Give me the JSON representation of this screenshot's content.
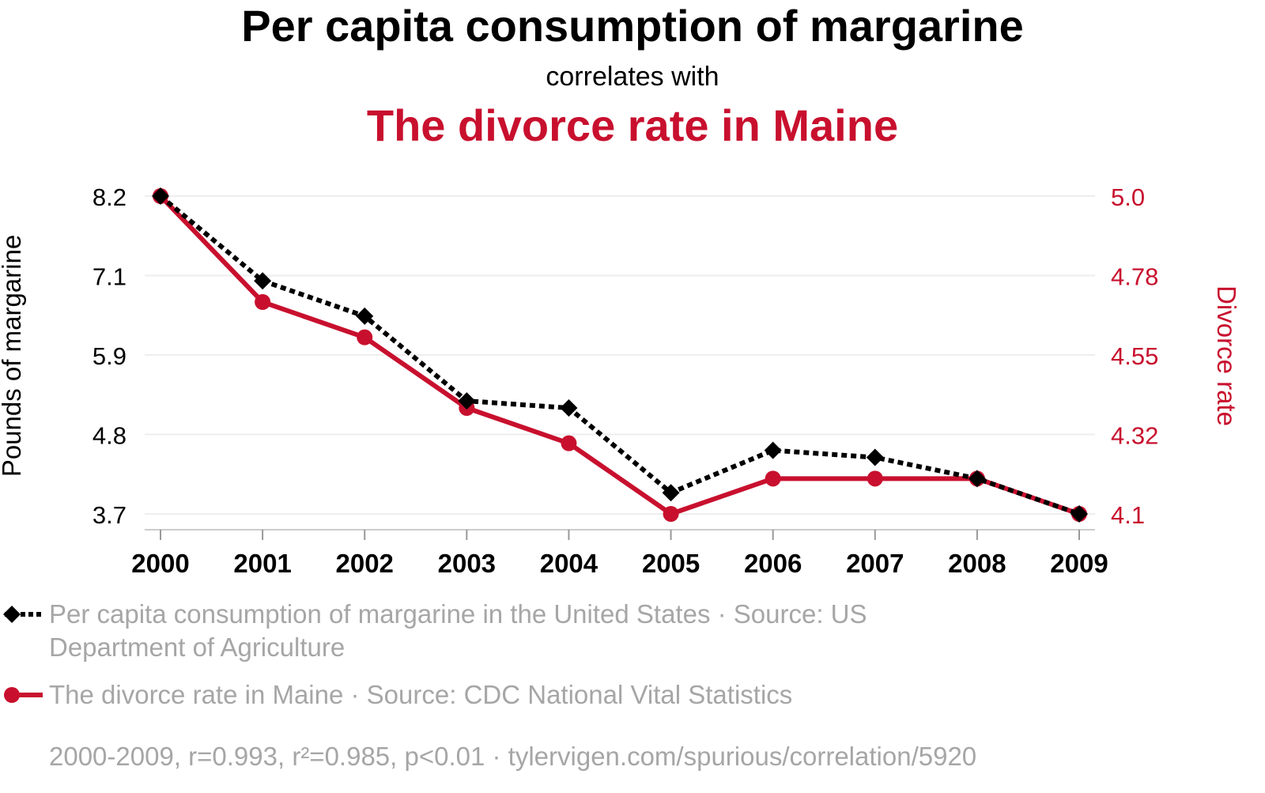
{
  "colors": {
    "series1": "#000000",
    "series2": "#c8102e",
    "grid": "#eeeeee",
    "muted": "#a6a6a6"
  },
  "header": {
    "title": "Per capita consumption of margarine",
    "subtitle": "correlates with",
    "title2": "The divorce rate in Maine"
  },
  "chart_data": {
    "type": "line",
    "x": [
      2000,
      2001,
      2002,
      2003,
      2004,
      2005,
      2006,
      2007,
      2008,
      2009
    ],
    "ylabel_left": "Pounds of margarine",
    "ylabel_right": "Divorce rate",
    "yticks_left": [
      "8.2",
      "7.1",
      "5.9",
      "4.8",
      "3.7"
    ],
    "yticks_right": [
      "5.0",
      "4.78",
      "4.55",
      "4.32",
      "4.1"
    ],
    "ylim_left": [
      3.7,
      8.2
    ],
    "ylim_right": [
      4.1,
      5.0
    ],
    "series": [
      {
        "name": "Per capita consumption of margarine",
        "axis": "left",
        "style": "dotted",
        "marker": "diamond",
        "values": [
          8.2,
          7.0,
          6.5,
          5.3,
          5.2,
          4.0,
          4.6,
          4.5,
          4.2,
          3.7
        ]
      },
      {
        "name": "The divorce rate in Maine",
        "axis": "right",
        "style": "solid",
        "marker": "circle",
        "values": [
          5.0,
          4.7,
          4.6,
          4.4,
          4.3,
          4.1,
          4.2,
          4.2,
          4.2,
          4.1
        ]
      }
    ]
  },
  "legend": {
    "series1_line1": "Per capita consumption of margarine in the United States · Source: US",
    "series1_line2": "Department of Agriculture",
    "series2": "The divorce rate in Maine · Source: CDC National Vital Statistics"
  },
  "footer": "2000-2009, r=0.993, r²=0.985, p<0.01 · tylervigen.com/spurious/correlation/5920"
}
